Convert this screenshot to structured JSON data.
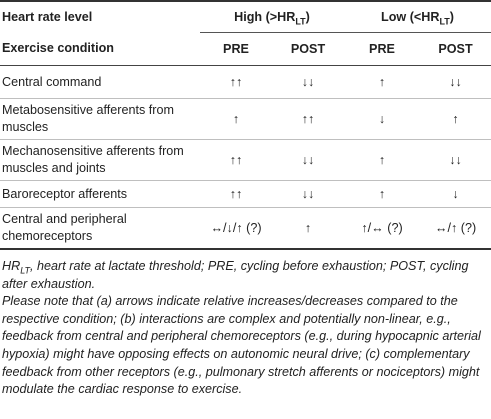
{
  "header": {
    "level_label": "Heart rate level",
    "high_pre": "High (>HR",
    "high_sub": "LT",
    "high_post": ")",
    "low_pre": "Low (<HR",
    "low_sub": "LT",
    "low_post": ")",
    "condition_label": "Exercise condition",
    "columns": [
      "PRE",
      "POST",
      "PRE",
      "POST"
    ]
  },
  "rows": [
    {
      "label": "Central command",
      "cells": [
        "↑↑",
        "↓↓",
        "↑",
        "↓↓"
      ]
    },
    {
      "label": "Metabosensitive afferents from muscles",
      "cells": [
        "↑",
        "↑↑",
        "↓",
        "↑"
      ]
    },
    {
      "label": "Mechanosensitive afferents from muscles and joints",
      "cells": [
        "↑↑",
        "↓↓",
        "↑",
        "↓↓"
      ]
    },
    {
      "label": "Baroreceptor afferents",
      "cells": [
        "↑↑",
        "↓↓",
        "↑",
        "↓"
      ]
    },
    {
      "label": "Central and peripheral chemoreceptors",
      "cells": [
        "↔/↓/↑ (?)",
        "↑",
        "↑/↔ (?)",
        "↔/↑ (?)"
      ]
    }
  ],
  "footnote": {
    "abbr_hr": "HR",
    "abbr_sub": "LT",
    "abbr_rest": ", heart rate at lactate threshold; PRE, cycling before exhaustion; POST, cycling after exhaustion.",
    "note": "Please note that (a) arrows indicate relative increases/decreases compared to the respective condition; (b) interactions are complex and potentially non-linear, e.g., feedback from central and peripheral chemoreceptors (e.g., during hypocapnic arterial hypoxia) might have opposing effects on autonomic neural drive; (c) complementary feedback from other receptors (e.g., pulmonary stretch afferents or nociceptors) might modulate the cardiac response to exercise."
  }
}
